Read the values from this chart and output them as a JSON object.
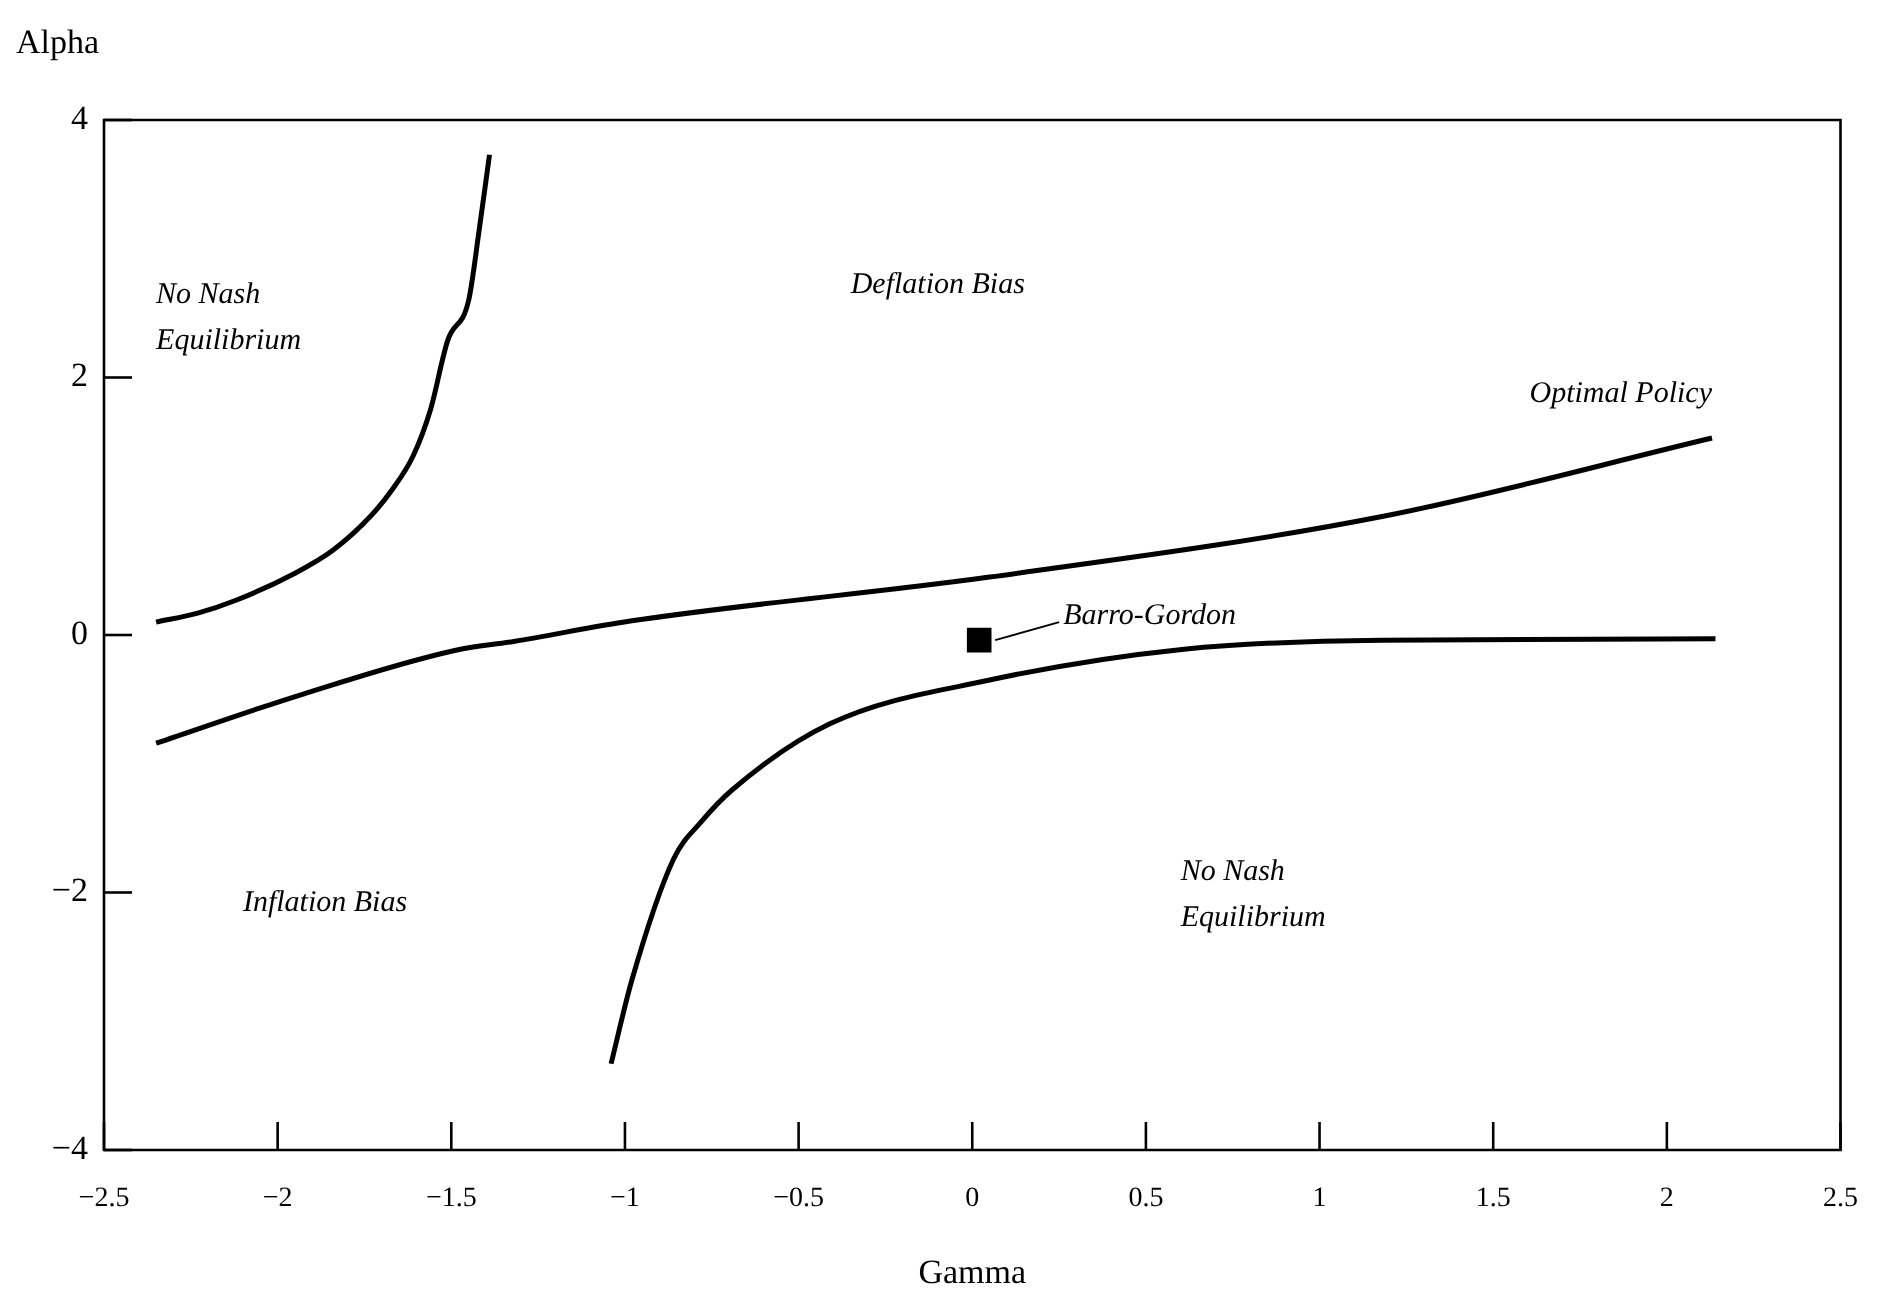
{
  "chart_data": {
    "type": "line",
    "xlabel": "Gamma",
    "ylabel": "Alpha",
    "xlim": [
      -2.5,
      2.5
    ],
    "ylim": [
      -4,
      4
    ],
    "xticks": [
      {
        "value": -2.5,
        "label": "−2.5"
      },
      {
        "value": -2,
        "label": "−2"
      },
      {
        "value": -1.5,
        "label": "−1.5"
      },
      {
        "value": -1,
        "label": "−1"
      },
      {
        "value": -0.5,
        "label": "−0.5"
      },
      0,
      0.5,
      1,
      1.5,
      2,
      2.5
    ],
    "yticks": [
      {
        "value": -4,
        "label": "−4"
      },
      {
        "value": -2,
        "label": "−2"
      },
      0,
      2,
      4
    ],
    "grid": false,
    "legend": false,
    "series": [
      {
        "type": "line",
        "color": "#000000",
        "marker": "none",
        "x": [
          -2.35,
          -2.23,
          -2.12,
          -1.95,
          -1.84,
          -1.73,
          -1.67,
          -1.61,
          -1.56,
          -1.51,
          -1.45,
          -1.42,
          -1.39
        ],
        "values": [
          0.1,
          0.17,
          0.27,
          0.48,
          0.66,
          0.93,
          1.13,
          1.39,
          1.75,
          2.29,
          2.6,
          3.14,
          3.73
        ]
      },
      {
        "type": "line",
        "name": "Optimal Policy",
        "color": "#000000",
        "marker": "none",
        "x": [
          -2.35,
          -1.94,
          -1.49,
          -1.32,
          -0.98,
          0.05,
          1.18,
          2.13
        ],
        "values": [
          -0.84,
          -0.47,
          -0.12,
          -0.05,
          0.11,
          0.45,
          0.92,
          1.53
        ]
      },
      {
        "type": "line",
        "color": "#000000",
        "marker": "none",
        "x": [
          -1.04,
          -0.98,
          -0.86,
          -0.78,
          -0.69,
          -0.41,
          0.05,
          0.61,
          1.18,
          2.14
        ],
        "values": [
          -3.33,
          -2.68,
          -1.74,
          -1.45,
          -1.2,
          -0.69,
          -0.35,
          -0.11,
          -0.04,
          -0.03
        ]
      },
      {
        "type": "scatter",
        "color": "#000000",
        "marker": "square",
        "x": [
          0.02
        ],
        "values": [
          -0.04
        ]
      }
    ],
    "annotations": [
      "No Nash Equilibrium",
      "Deflation Bias",
      {
        "text": "Barro-Gordon",
        "x": 0.02,
        "y": -0.04
      },
      "Inflation Bias",
      "No Nash Equilibrium"
    ]
  }
}
